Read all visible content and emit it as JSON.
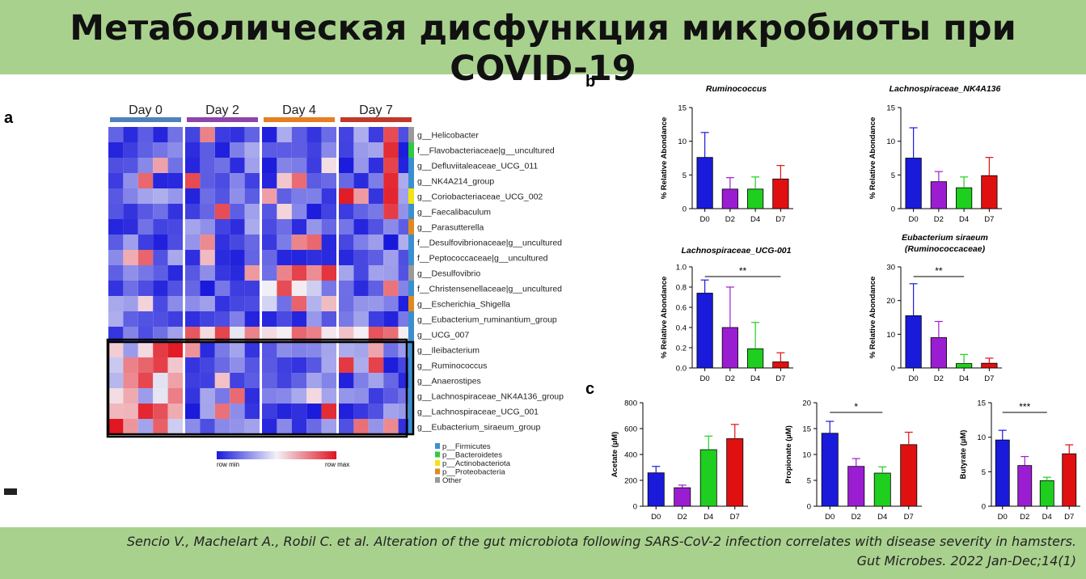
{
  "title": "Метаболическая дисфункция микробиоты при COVID-19",
  "citation": {
    "line1": "Sencio V., Machelart A., Robil C. et al. Alteration of the gut microbiota following SARS-CoV-2 infection correlates with disease severity in hamsters.",
    "line2": "Gut Microbes. 2022 Jan-Dec;14(1)"
  },
  "panel_labels": {
    "a": "a",
    "b": "b",
    "c": "c"
  },
  "heatmap": {
    "days": [
      "Day 0",
      "Day 2",
      "Day 4",
      "Day 7"
    ],
    "day_colors": [
      "#4f81bd",
      "#8e44ad",
      "#e67e22",
      "#c0392b"
    ],
    "taxa": [
      "g__Helicobacter",
      "f__Flavobacteriaceae|g__uncultured",
      "g__Defluviitaleaceae_UCG_011",
      "g__NK4A214_group",
      "g__Coriobacteriaceae_UCG_002",
      "g__Faecalibaculum",
      "g__Parasutterella",
      "f__Desulfovibrionaceae|g__uncultured",
      "f__Peptococcaceae|g__uncultured",
      "g__Desulfovibrio",
      "f__Christensenellaceae|g__uncultured",
      "g__Escherichia_Shigella",
      "g__Eubacterium_ruminantium_group",
      "g__UCG_007",
      "g__Ileibacterium",
      "g__Ruminococcus",
      "g__Anaerostipes",
      "g__Lachnospiraceae_NK4A136_group",
      "g__Lachnospiraceae_UCG_001",
      "g__Eubacterium_siraeum_group"
    ],
    "phylum_of_taxa": [
      "Other",
      "Bacteroidetes",
      "Firmicutes",
      "Firmicutes",
      "Actinobacteriota",
      "Firmicutes",
      "Proteobacteria",
      "Firmicutes",
      "Firmicutes",
      "Other",
      "Firmicutes",
      "Proteobacteria",
      "Firmicutes",
      "Firmicutes",
      "Firmicutes",
      "Firmicutes",
      "Firmicutes",
      "Firmicutes",
      "Firmicutes",
      "Firmicutes"
    ],
    "scale_min_label": "row min",
    "scale_max_label": "row max",
    "legend": [
      {
        "label": "p__Firmicutes",
        "color": "#3a8fd0"
      },
      {
        "label": "p__Bacteroidetes",
        "color": "#2ecc40"
      },
      {
        "label": "p__Actinobacteriota",
        "color": "#f1e40f"
      },
      {
        "label": "p__Proteobacteria",
        "color": "#e08a1e"
      },
      {
        "label": "Other",
        "color": "#9a9a9a"
      }
    ]
  },
  "chart_data": [
    {
      "type": "bar",
      "title": "Ruminococcus",
      "ylabel": "% Relative Abondance",
      "categories": [
        "D0",
        "D2",
        "D4",
        "D7"
      ],
      "values": [
        7.6,
        2.9,
        2.9,
        4.4
      ],
      "errors": [
        3.7,
        1.7,
        1.8,
        2.0
      ],
      "ylim": [
        0,
        15
      ],
      "yticks": [
        "0",
        "5",
        "10",
        "15"
      ],
      "colors": [
        "#1a1adb",
        "#9b1dd1",
        "#1fcf1f",
        "#e01010"
      ]
    },
    {
      "type": "bar",
      "title": "Lachnospiraceae_NK4A136",
      "ylabel": "% Relative Abondance",
      "categories": [
        "D0",
        "D2",
        "D4",
        "D7"
      ],
      "values": [
        7.5,
        4.0,
        3.1,
        4.9
      ],
      "errors": [
        4.5,
        1.5,
        1.6,
        2.7
      ],
      "ylim": [
        0,
        15
      ],
      "yticks": [
        "0",
        "5",
        "10",
        "15"
      ],
      "colors": [
        "#1a1adb",
        "#9b1dd1",
        "#1fcf1f",
        "#e01010"
      ]
    },
    {
      "type": "bar",
      "title": "Lachnospiraceae_UCG-001",
      "ylabel": "% Relative Abondance",
      "categories": [
        "D0",
        "D2",
        "D4",
        "D7"
      ],
      "values": [
        0.74,
        0.4,
        0.19,
        0.06
      ],
      "errors": [
        0.13,
        0.4,
        0.26,
        0.09
      ],
      "ylim": [
        0,
        1.0
      ],
      "yticks": [
        "0.0",
        "0.2",
        "0.4",
        "0.6",
        "0.8",
        "1.0"
      ],
      "colors": [
        "#1a1adb",
        "#9b1dd1",
        "#1fcf1f",
        "#e01010"
      ],
      "sig": {
        "label": "**",
        "from": 0,
        "to": 3
      }
    },
    {
      "type": "bar",
      "title": "Eubacterium siraeum",
      "subtitle": "(Ruminococcaceae)",
      "ylabel": "% Relative Abondance",
      "categories": [
        "D0",
        "D2",
        "D4",
        "D7"
      ],
      "values": [
        15.5,
        9.0,
        1.3,
        1.4
      ],
      "errors": [
        9.5,
        4.8,
        2.7,
        1.5
      ],
      "ylim": [
        0,
        30
      ],
      "yticks": [
        "0",
        "10",
        "20",
        "30"
      ],
      "colors": [
        "#1a1adb",
        "#9b1dd1",
        "#1fcf1f",
        "#e01010"
      ],
      "sig": {
        "label": "**",
        "from": 0,
        "to": 2
      }
    },
    {
      "type": "bar",
      "title": "",
      "ylabel": "Acetate (µM)",
      "categories": [
        "D0",
        "D2",
        "D4",
        "D7"
      ],
      "values": [
        258,
        143,
        437,
        522
      ],
      "errors": [
        50,
        20,
        105,
        110
      ],
      "ylim": [
        0,
        800
      ],
      "yticks": [
        "0",
        "200",
        "400",
        "600",
        "800"
      ],
      "colors": [
        "#1a1adb",
        "#9b1dd1",
        "#1fcf1f",
        "#e01010"
      ]
    },
    {
      "type": "bar",
      "title": "",
      "ylabel": "Propionate (µM)",
      "categories": [
        "D0",
        "D2",
        "D4",
        "D7"
      ],
      "values": [
        14.1,
        7.7,
        6.4,
        11.9
      ],
      "errors": [
        2.3,
        1.5,
        1.2,
        2.4
      ],
      "ylim": [
        0,
        20
      ],
      "yticks": [
        "0",
        "5",
        "10",
        "15",
        "20"
      ],
      "colors": [
        "#1a1adb",
        "#9b1dd1",
        "#1fcf1f",
        "#e01010"
      ],
      "sig": {
        "label": "*",
        "from": 0,
        "to": 2
      }
    },
    {
      "type": "bar",
      "title": "",
      "ylabel": "Butyrate (µM)",
      "categories": [
        "D0",
        "D2",
        "D4",
        "D7"
      ],
      "values": [
        9.6,
        5.9,
        3.7,
        7.6
      ],
      "errors": [
        1.4,
        1.3,
        0.5,
        1.3
      ],
      "ylim": [
        0,
        15
      ],
      "yticks": [
        "0",
        "5",
        "10",
        "15"
      ],
      "colors": [
        "#1a1adb",
        "#9b1dd1",
        "#1fcf1f",
        "#e01010"
      ],
      "sig": {
        "label": "***",
        "from": 0,
        "to": 2
      }
    }
  ]
}
